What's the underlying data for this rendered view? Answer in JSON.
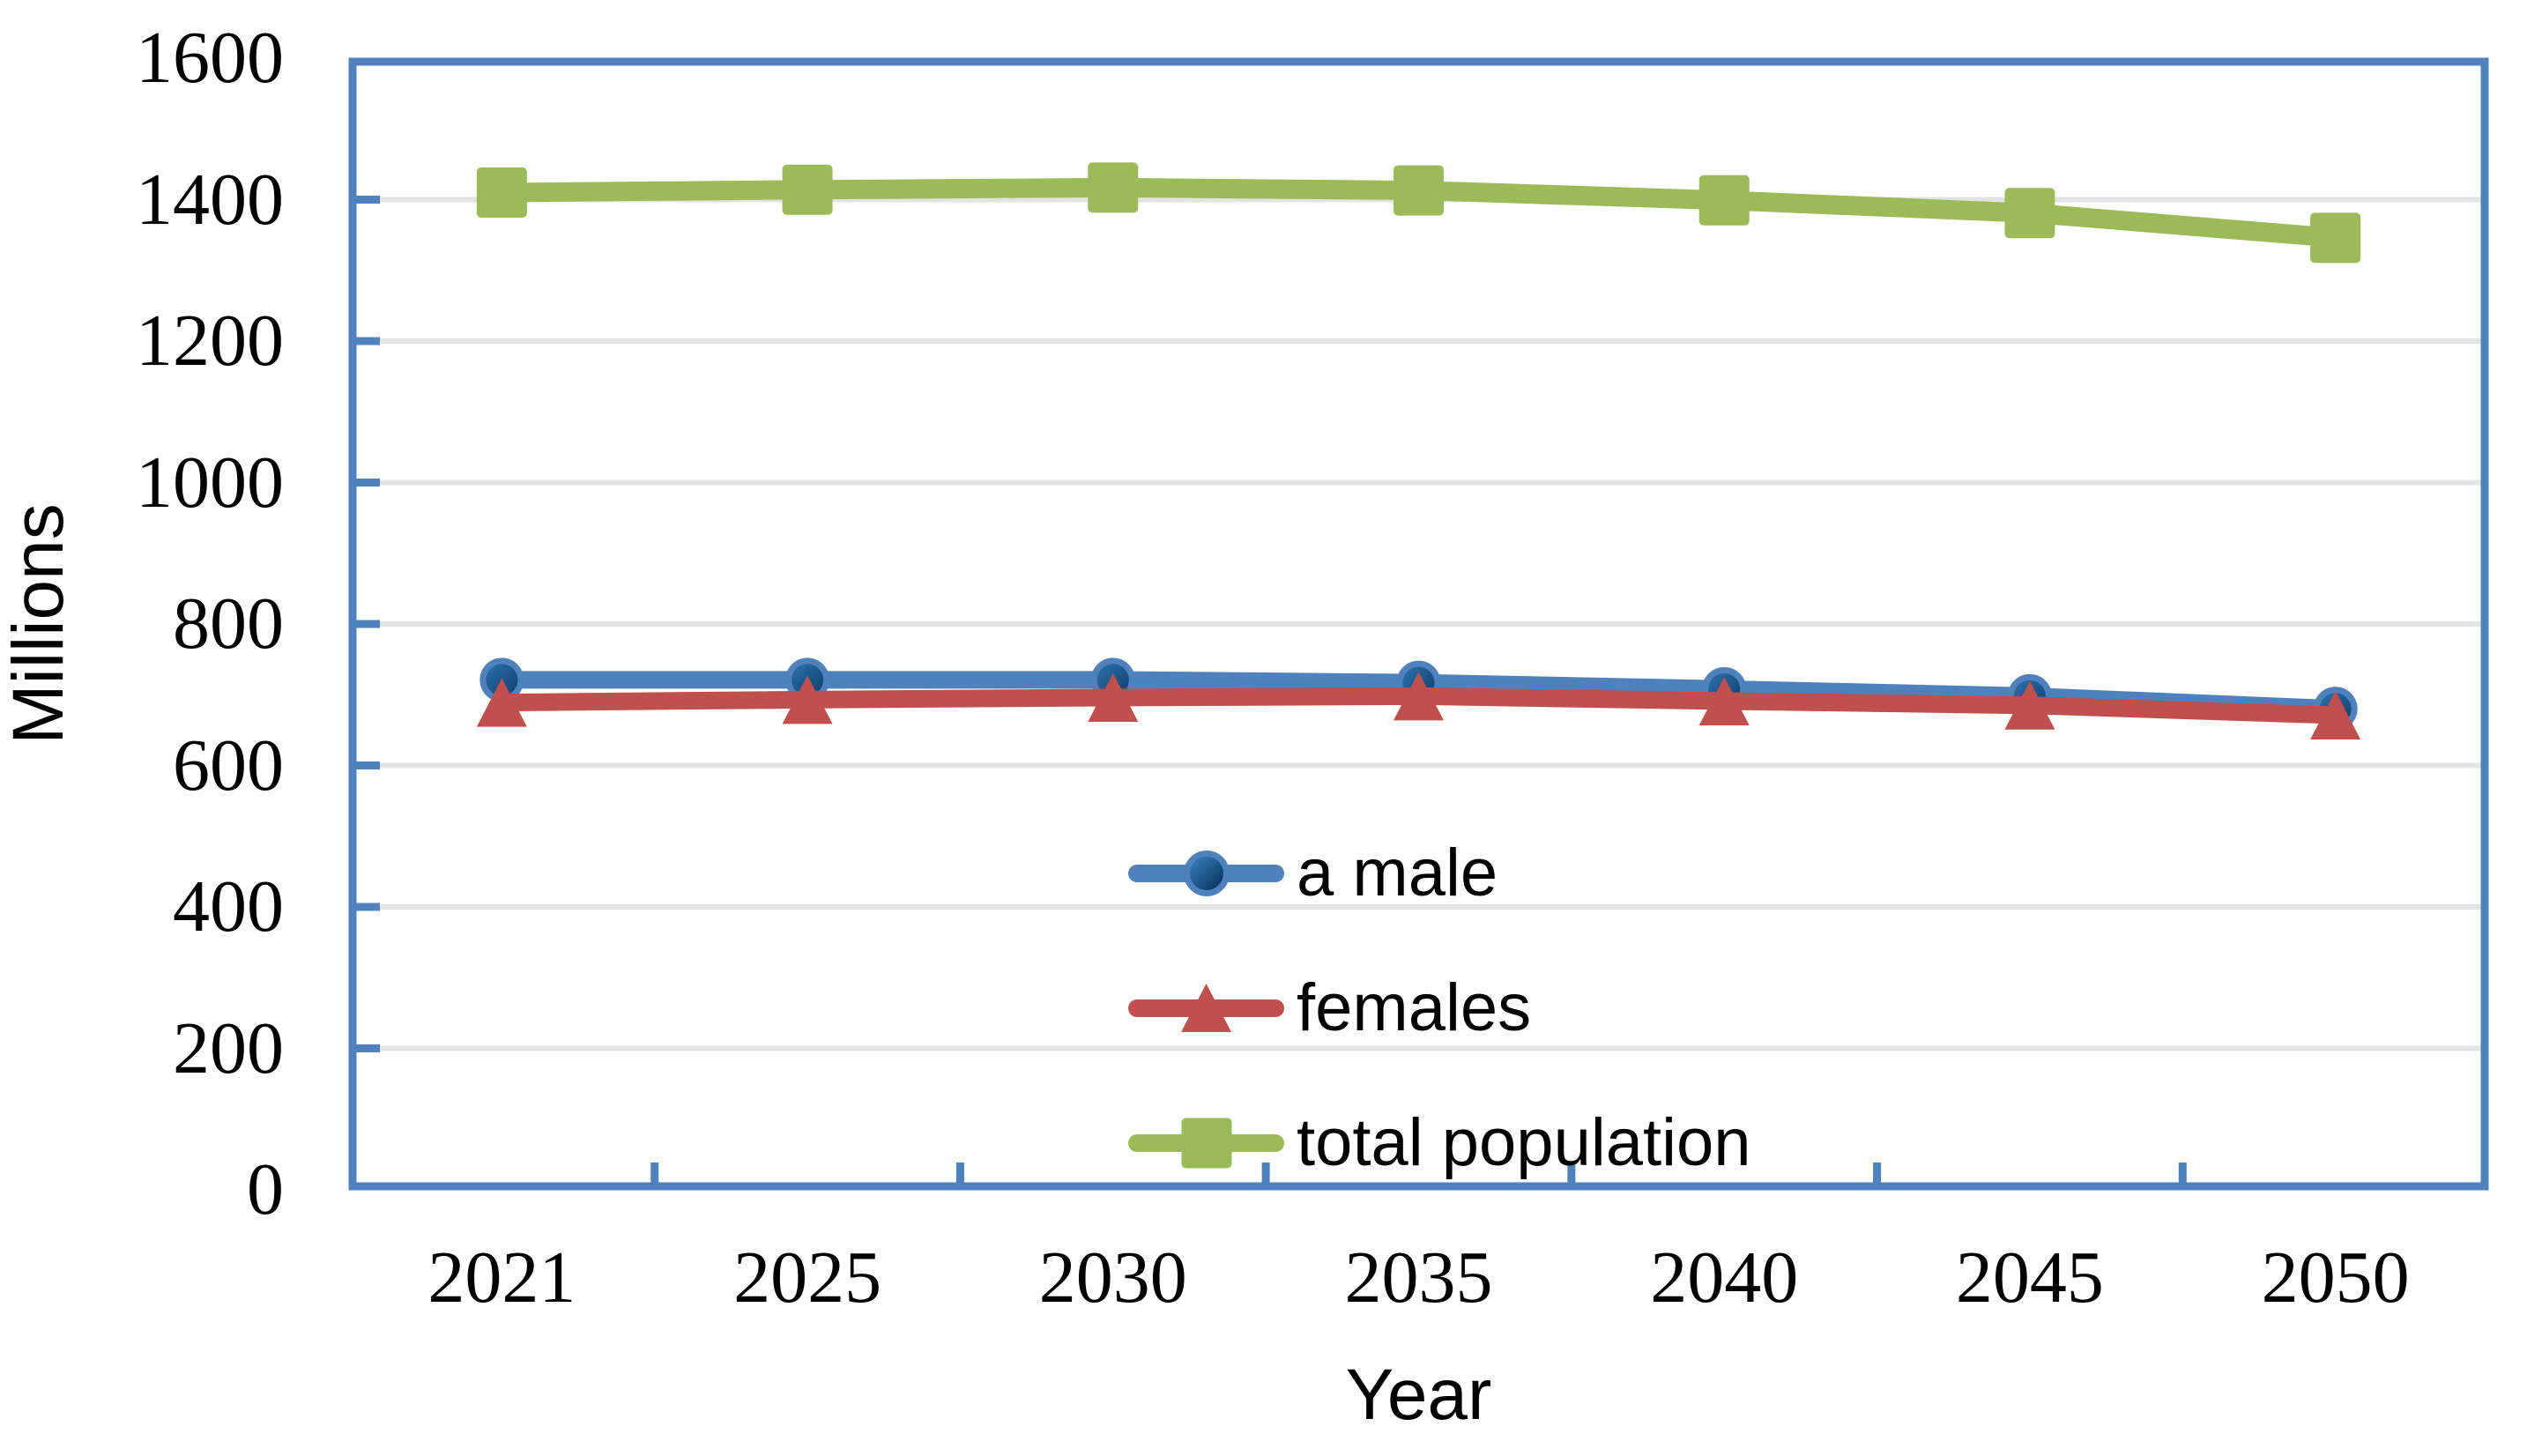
{
  "chart_data": {
    "type": "line",
    "title": "",
    "xlabel": "Year",
    "ylabel": "Millions",
    "categories": [
      "2021",
      "2025",
      "2030",
      "2035",
      "2040",
      "2045",
      "2050"
    ],
    "series": [
      {
        "name": "a male",
        "marker": "circle",
        "color": "#4F81BD",
        "values": [
          721,
          721,
          721,
          717,
          708,
          698,
          680
        ]
      },
      {
        "name": "females",
        "marker": "triangle",
        "color": "#C0504D",
        "values": [
          689,
          693,
          696,
          698,
          691,
          685,
          671
        ]
      },
      {
        "name": "total population",
        "marker": "square",
        "color": "#9BBB59",
        "values": [
          1410,
          1414,
          1417,
          1413,
          1399,
          1381,
          1346
        ]
      }
    ],
    "ylim": [
      0,
      1600
    ],
    "yticks": [
      0,
      200,
      400,
      600,
      800,
      1000,
      1200,
      1400,
      1600
    ],
    "grid": true,
    "legend_position": "inside-center-bottom"
  },
  "style": {
    "axis_color": "#4F81BD",
    "gridline_color": "#E3E3E3",
    "text_color": "#000000",
    "blue_marker_gradient_start": "#2E75B6",
    "blue_marker_gradient_end": "#0F3A63"
  }
}
